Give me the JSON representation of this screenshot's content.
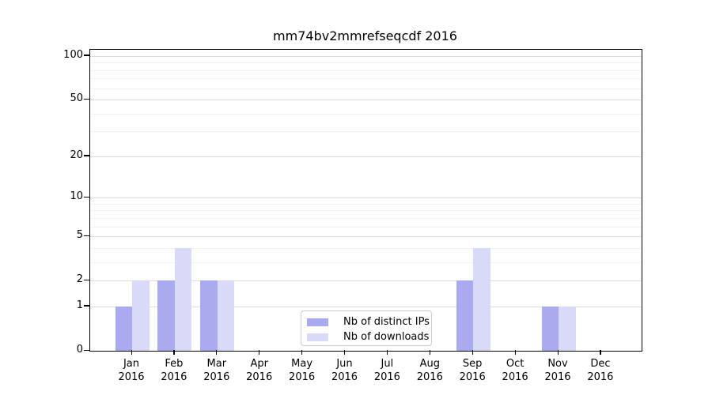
{
  "chart_data": {
    "type": "bar",
    "title": "mm74bv2mmrefseqcdf 2016",
    "categories": [
      "Jan",
      "Feb",
      "Mar",
      "Apr",
      "May",
      "Jun",
      "Jul",
      "Aug",
      "Sep",
      "Oct",
      "Nov",
      "Dec"
    ],
    "category_year": "2016",
    "series": [
      {
        "name": "Nb of distinct IPs",
        "color": "#aaaaf0",
        "values": [
          1,
          2,
          2,
          0,
          0,
          0,
          0,
          0,
          2,
          0,
          1,
          0
        ]
      },
      {
        "name": "Nb of downloads",
        "color": "#d9d9f8",
        "values": [
          2,
          4,
          2,
          0,
          0,
          0,
          0,
          0,
          4,
          0,
          1,
          0
        ]
      }
    ],
    "yscale": "log1p",
    "yticks": [
      0,
      1,
      2,
      5,
      10,
      20,
      50,
      100
    ],
    "ylim": [
      0,
      110
    ],
    "xlabel": "",
    "ylabel": "",
    "grid": "horizontal",
    "legend": {
      "position": "inside-bottom-center",
      "labels": [
        "Nb of distinct IPs",
        "Nb of downloads"
      ]
    },
    "colors": {
      "grid_major": "#dcdcdc",
      "grid_minor": "#f2f2f2",
      "spine": "#000000"
    }
  }
}
